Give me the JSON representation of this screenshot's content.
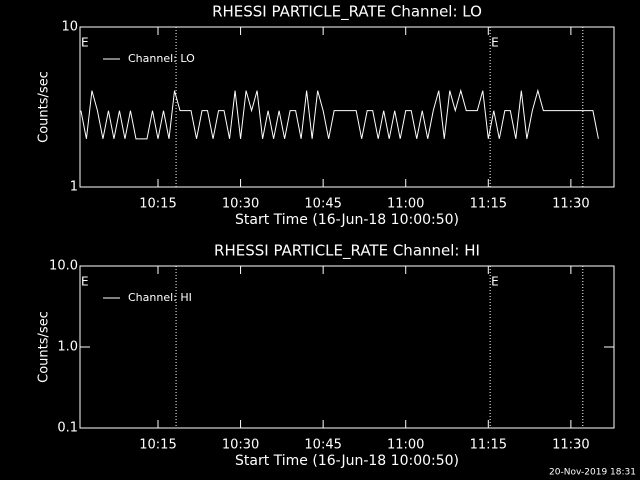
{
  "chart_data": [
    {
      "type": "line",
      "title": "RHESSI PARTICLE_RATE Channel: LO",
      "ylabel": "Counts/sec",
      "xlabel": "Start Time (16-Jun-18 10:00:50)",
      "log_y": true,
      "ylim": [
        1,
        10
      ],
      "yticks": [
        1,
        10
      ],
      "xlim": [
        "10:00:50",
        "11:37:50"
      ],
      "xticks": [
        "10:15",
        "10:30",
        "10:45",
        "11:00",
        "11:15",
        "11:30"
      ],
      "vlines": [
        "10:18:17",
        "11:15:20",
        "11:32:10"
      ],
      "annotations": [
        {
          "text": "E",
          "x": "10:00:50"
        },
        {
          "text": "E",
          "x": "11:15:20"
        }
      ],
      "x": [
        "10:01",
        "10:02",
        "10:03",
        "10:04",
        "10:05",
        "10:06",
        "10:07",
        "10:08",
        "10:09",
        "10:10",
        "10:11",
        "10:12",
        "10:13",
        "10:14",
        "10:15",
        "10:16",
        "10:17",
        "10:18",
        "10:19",
        "10:20",
        "10:21",
        "10:22",
        "10:23",
        "10:24",
        "10:25",
        "10:26",
        "10:27",
        "10:28",
        "10:29",
        "10:30",
        "10:31",
        "10:32",
        "10:33",
        "10:34",
        "10:35",
        "10:36",
        "10:37",
        "10:38",
        "10:39",
        "10:40",
        "10:41",
        "10:42",
        "10:43",
        "10:44",
        "10:45",
        "10:46",
        "10:47",
        "10:48",
        "10:49",
        "10:50",
        "10:51",
        "10:52",
        "10:53",
        "10:54",
        "10:55",
        "10:56",
        "10:57",
        "10:58",
        "10:59",
        "11:00",
        "11:01",
        "11:02",
        "11:03",
        "11:04",
        "11:05",
        "11:06",
        "11:07",
        "11:08",
        "11:09",
        "11:10",
        "11:11",
        "11:12",
        "11:13",
        "11:14",
        "11:15",
        "11:16",
        "11:17",
        "11:18",
        "11:19",
        "11:20",
        "11:21",
        "11:22",
        "11:23",
        "11:24",
        "11:25",
        "11:26",
        "11:27",
        "11:28",
        "11:29",
        "11:30",
        "11:31",
        "11:32",
        "11:33",
        "11:34",
        "11:35"
      ],
      "series": [
        {
          "name": "Channel: LO",
          "color": "#ffffff",
          "values": [
            3,
            2,
            4,
            3,
            2,
            3,
            2,
            3,
            2,
            3,
            2,
            2,
            2,
            3,
            2,
            3,
            2,
            4,
            3,
            3,
            3,
            2,
            3,
            3,
            2,
            3,
            3,
            2,
            4,
            2,
            4,
            3,
            4,
            2,
            3,
            2,
            3,
            2,
            3,
            3,
            2,
            4,
            2,
            4,
            3,
            2,
            3,
            3,
            3,
            3,
            3,
            2,
            3,
            3,
            2,
            3,
            2,
            3,
            2,
            3,
            3,
            2,
            3,
            2,
            3,
            4,
            2,
            4,
            3,
            4,
            3,
            3,
            3,
            4,
            2,
            3,
            2,
            3,
            3,
            2,
            4,
            2,
            3,
            4,
            3,
            3,
            3,
            3,
            3,
            3,
            3,
            3,
            3,
            3,
            2
          ]
        }
      ]
    },
    {
      "type": "line",
      "title": "RHESSI PARTICLE_RATE Channel: HI",
      "ylabel": "Counts/sec",
      "xlabel": "Start Time (16-Jun-18 10:00:50)",
      "log_y": true,
      "ylim": [
        0.1,
        10
      ],
      "yticks": [
        0.1,
        {
          "value": 1,
          "label": "1.0"
        },
        {
          "value": 10,
          "label": "10.0"
        }
      ],
      "xlim": [
        "10:00:50",
        "11:37:50"
      ],
      "xticks": [
        "10:15",
        "10:30",
        "10:45",
        "11:00",
        "11:15",
        "11:30"
      ],
      "vlines": [
        "10:18:17",
        "11:15:20",
        "11:32:10"
      ],
      "annotations": [
        {
          "text": "E",
          "x": "10:00:50"
        },
        {
          "text": "E",
          "x": "11:15:20"
        }
      ],
      "x": [],
      "series": [
        {
          "name": "Channel: HI",
          "color": "#ffffff",
          "values": []
        }
      ]
    }
  ],
  "footer": "20-Nov-2019 18:31"
}
